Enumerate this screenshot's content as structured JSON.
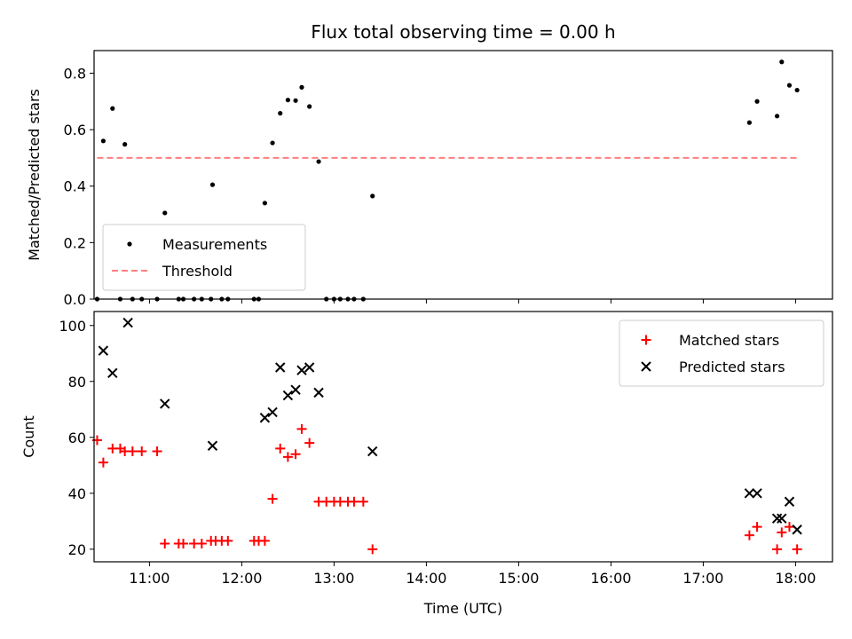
{
  "chart_data": [
    {
      "type": "scatter",
      "title": "Flux total observing time = 0.00 h",
      "xlabel": "",
      "ylabel": "Matched/Predicted stars",
      "xlim": [
        "10:24",
        "18:24"
      ],
      "ylim": [
        0,
        0.88
      ],
      "x_tick_labels": [
        "11:00",
        "12:00",
        "13:00",
        "14:00",
        "15:00",
        "16:00",
        "17:00",
        "18:00"
      ],
      "x_tick_labels_visible": false,
      "y_ticks": [
        0.0,
        0.2,
        0.4,
        0.6,
        0.8
      ],
      "y_tick_labels": [
        "0.0",
        "0.2",
        "0.4",
        "0.6",
        "0.8"
      ],
      "legend_placement": "lower-left",
      "series": [
        {
          "name": "Measurements",
          "marker": "dot",
          "color": "#000000",
          "points": [
            [
              "10:26",
              0.0
            ],
            [
              "10:30",
              0.56
            ],
            [
              "10:36",
              0.675
            ],
            [
              "10:41",
              0.0
            ],
            [
              "10:44",
              0.548
            ],
            [
              "10:49",
              0.0
            ],
            [
              "10:55",
              0.0
            ],
            [
              "11:05",
              0.0
            ],
            [
              "11:10",
              0.305
            ],
            [
              "11:19",
              0.0
            ],
            [
              "11:22",
              0.0
            ],
            [
              "11:29",
              0.0
            ],
            [
              "11:34",
              0.0
            ],
            [
              "11:40",
              0.0
            ],
            [
              "11:47",
              0.0
            ],
            [
              "11:51",
              0.0
            ],
            [
              "11:41",
              0.405
            ],
            [
              "12:08",
              0.0
            ],
            [
              "12:11",
              0.0
            ],
            [
              "12:15",
              0.34
            ],
            [
              "12:20",
              0.553
            ],
            [
              "12:25",
              0.658
            ],
            [
              "12:30",
              0.705
            ],
            [
              "12:35",
              0.703
            ],
            [
              "12:39",
              0.75
            ],
            [
              "12:44",
              0.682
            ],
            [
              "12:50",
              0.487
            ],
            [
              "12:55",
              0.0
            ],
            [
              "13:00",
              0.0
            ],
            [
              "13:04",
              0.0
            ],
            [
              "13:09",
              0.0
            ],
            [
              "13:13",
              0.0
            ],
            [
              "13:19",
              0.0
            ],
            [
              "13:25",
              0.365
            ],
            [
              "17:30",
              0.625
            ],
            [
              "17:35",
              0.7
            ],
            [
              "17:48",
              0.648
            ],
            [
              "17:51",
              0.84
            ],
            [
              "17:56",
              0.757
            ],
            [
              "18:01",
              0.74
            ]
          ]
        },
        {
          "name": "Threshold",
          "style": "dashed",
          "color": "#ff7f7f",
          "points": [
            [
              "10:26",
              0.5
            ],
            [
              "18:01",
              0.5
            ]
          ]
        }
      ]
    },
    {
      "type": "scatter",
      "title": "",
      "xlabel": "Time (UTC)",
      "ylabel": "Count",
      "xlim": [
        "10:24",
        "18:24"
      ],
      "ylim": [
        15.5,
        105
      ],
      "x_tick_labels": [
        "11:00",
        "12:00",
        "13:00",
        "14:00",
        "15:00",
        "16:00",
        "17:00",
        "18:00"
      ],
      "y_ticks": [
        20,
        40,
        60,
        80,
        100
      ],
      "y_tick_labels": [
        "20",
        "40",
        "60",
        "80",
        "100"
      ],
      "legend_placement": "upper-right",
      "series": [
        {
          "name": "Matched stars",
          "marker": "plus",
          "color": "#ff0000",
          "points": [
            [
              "10:26",
              59
            ],
            [
              "10:30",
              51
            ],
            [
              "10:36",
              56
            ],
            [
              "10:41",
              56
            ],
            [
              "10:44",
              55
            ],
            [
              "10:49",
              55
            ],
            [
              "10:55",
              55
            ],
            [
              "11:05",
              55
            ],
            [
              "11:10",
              22
            ],
            [
              "11:19",
              22
            ],
            [
              "11:22",
              22
            ],
            [
              "11:29",
              22
            ],
            [
              "11:34",
              22
            ],
            [
              "11:40",
              23
            ],
            [
              "11:43",
              23
            ],
            [
              "11:47",
              23
            ],
            [
              "11:51",
              23
            ],
            [
              "12:08",
              23
            ],
            [
              "12:11",
              23
            ],
            [
              "12:15",
              23
            ],
            [
              "12:20",
              38
            ],
            [
              "12:25",
              56
            ],
            [
              "12:30",
              53
            ],
            [
              "12:35",
              54
            ],
            [
              "12:39",
              63
            ],
            [
              "12:44",
              58
            ],
            [
              "12:50",
              37
            ],
            [
              "12:55",
              37
            ],
            [
              "13:00",
              37
            ],
            [
              "13:04",
              37
            ],
            [
              "13:09",
              37
            ],
            [
              "13:13",
              37
            ],
            [
              "13:19",
              37
            ],
            [
              "13:25",
              20
            ],
            [
              "17:30",
              25
            ],
            [
              "17:35",
              28
            ],
            [
              "17:48",
              20
            ],
            [
              "17:51",
              26
            ],
            [
              "17:56",
              28
            ],
            [
              "18:01",
              20
            ]
          ]
        },
        {
          "name": "Predicted stars",
          "marker": "x",
          "color": "#000000",
          "points": [
            [
              "10:30",
              91
            ],
            [
              "10:36",
              83
            ],
            [
              "10:46",
              101
            ],
            [
              "11:10",
              72
            ],
            [
              "11:41",
              57
            ],
            [
              "12:15",
              67
            ],
            [
              "12:20",
              69
            ],
            [
              "12:25",
              85
            ],
            [
              "12:30",
              75
            ],
            [
              "12:35",
              77
            ],
            [
              "12:39",
              84
            ],
            [
              "12:44",
              85
            ],
            [
              "12:50",
              76
            ],
            [
              "13:25",
              55
            ],
            [
              "17:30",
              40
            ],
            [
              "17:35",
              40
            ],
            [
              "17:48",
              31
            ],
            [
              "17:51",
              31
            ],
            [
              "17:56",
              37
            ],
            [
              "18:01",
              27
            ]
          ]
        }
      ]
    }
  ]
}
